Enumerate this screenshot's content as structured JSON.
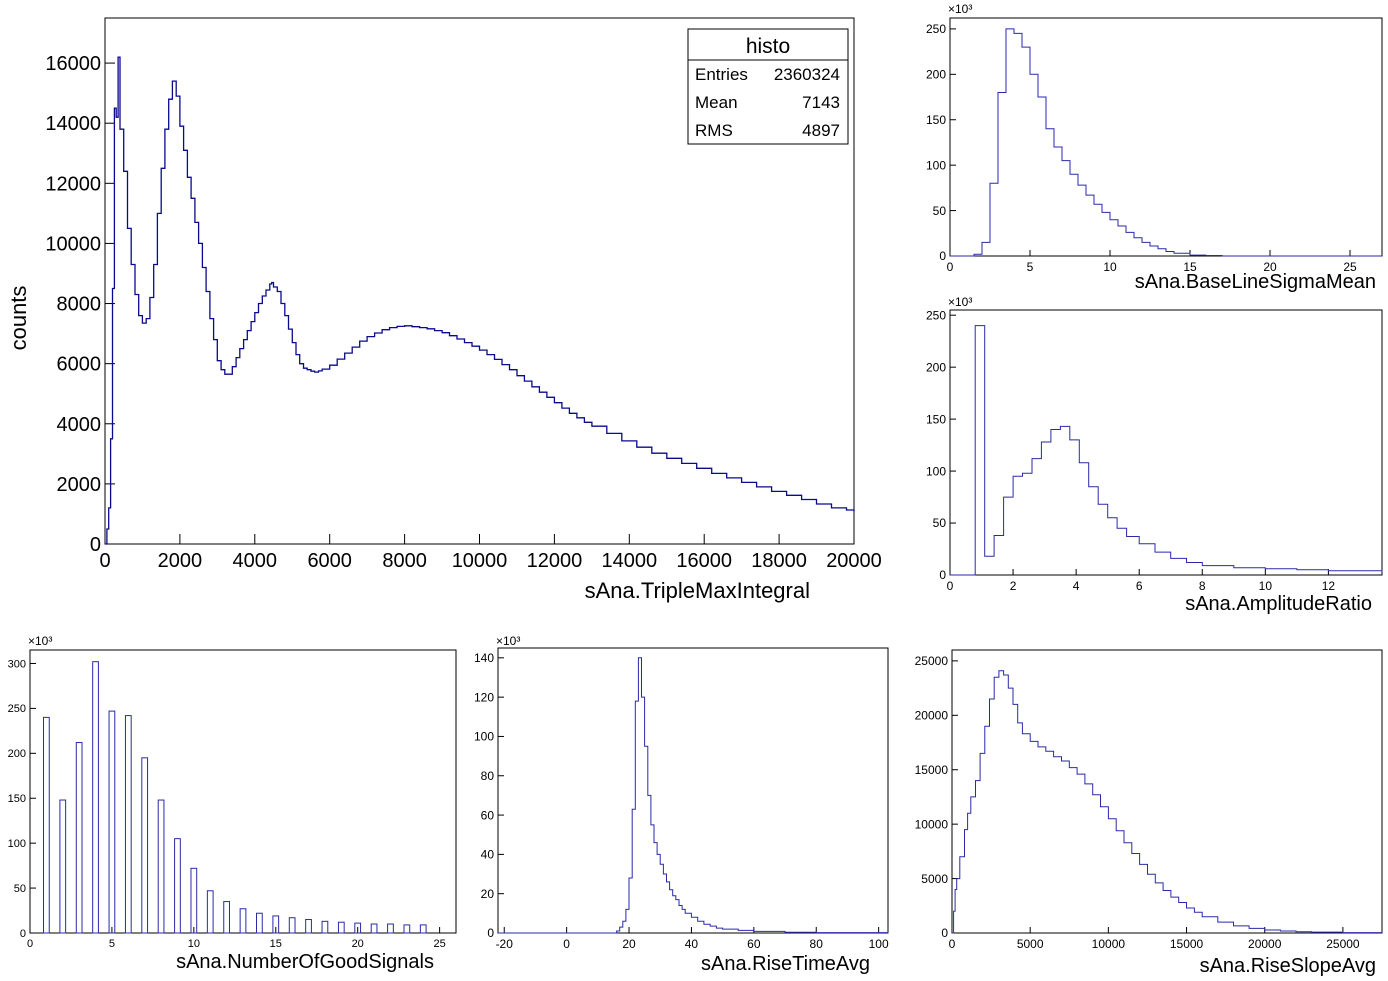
{
  "chart_data": [
    {
      "id": "triple",
      "type": "histogram",
      "title": "",
      "xlabel": "sAna.TripleMaxIntegral",
      "ylabel": "counts",
      "xlim": [
        0,
        20000
      ],
      "ylim": [
        0,
        17500
      ],
      "xticks": [
        0,
        2000,
        4000,
        6000,
        8000,
        10000,
        12000,
        14000,
        16000,
        18000,
        20000
      ],
      "yticks": [
        0,
        2000,
        4000,
        6000,
        8000,
        10000,
        12000,
        14000,
        16000
      ],
      "exponent_label": "",
      "stats": {
        "title": "histo",
        "rows": [
          {
            "label": "Entries",
            "value": "2360324"
          },
          {
            "label": "Mean",
            "value": "7143"
          },
          {
            "label": "RMS",
            "value": "4897"
          }
        ]
      },
      "points": [
        [
          0,
          0
        ],
        [
          50,
          500
        ],
        [
          100,
          1200
        ],
        [
          150,
          3500
        ],
        [
          200,
          8500
        ],
        [
          250,
          14500
        ],
        [
          300,
          14200
        ],
        [
          350,
          16200
        ],
        [
          400,
          13800
        ],
        [
          500,
          12400
        ],
        [
          600,
          10500
        ],
        [
          700,
          9300
        ],
        [
          800,
          8300
        ],
        [
          900,
          7600
        ],
        [
          1000,
          7350
        ],
        [
          1100,
          7500
        ],
        [
          1200,
          8200
        ],
        [
          1300,
          9300
        ],
        [
          1400,
          11000
        ],
        [
          1500,
          12500
        ],
        [
          1600,
          13800
        ],
        [
          1700,
          14800
        ],
        [
          1800,
          15400
        ],
        [
          1900,
          14900
        ],
        [
          2000,
          13900
        ],
        [
          2100,
          13100
        ],
        [
          2200,
          12200
        ],
        [
          2300,
          11500
        ],
        [
          2400,
          10700
        ],
        [
          2500,
          10000
        ],
        [
          2600,
          9200
        ],
        [
          2700,
          8400
        ],
        [
          2800,
          7500
        ],
        [
          2900,
          6800
        ],
        [
          3000,
          6100
        ],
        [
          3100,
          5800
        ],
        [
          3200,
          5650
        ],
        [
          3300,
          5650
        ],
        [
          3400,
          5900
        ],
        [
          3500,
          6200
        ],
        [
          3600,
          6500
        ],
        [
          3700,
          6800
        ],
        [
          3800,
          7100
        ],
        [
          3900,
          7400
        ],
        [
          4000,
          7700
        ],
        [
          4100,
          8000
        ],
        [
          4200,
          8250
        ],
        [
          4300,
          8450
        ],
        [
          4400,
          8650
        ],
        [
          4450,
          8700
        ],
        [
          4500,
          8550
        ],
        [
          4600,
          8400
        ],
        [
          4700,
          8000
        ],
        [
          4800,
          7600
        ],
        [
          4900,
          7150
        ],
        [
          5000,
          6700
        ],
        [
          5100,
          6300
        ],
        [
          5200,
          6000
        ],
        [
          5300,
          5850
        ],
        [
          5400,
          5800
        ],
        [
          5500,
          5750
        ],
        [
          5600,
          5720
        ],
        [
          5700,
          5760
        ],
        [
          5800,
          5820
        ],
        [
          6000,
          5950
        ],
        [
          6200,
          6150
        ],
        [
          6400,
          6350
        ],
        [
          6600,
          6550
        ],
        [
          6800,
          6750
        ],
        [
          7000,
          6900
        ],
        [
          7200,
          7020
        ],
        [
          7400,
          7130
        ],
        [
          7600,
          7200
        ],
        [
          7800,
          7240
        ],
        [
          8000,
          7260
        ],
        [
          8200,
          7230
        ],
        [
          8400,
          7200
        ],
        [
          8600,
          7160
        ],
        [
          8800,
          7100
        ],
        [
          9000,
          7030
        ],
        [
          9200,
          6930
        ],
        [
          9400,
          6820
        ],
        [
          9600,
          6700
        ],
        [
          9800,
          6580
        ],
        [
          10000,
          6450
        ],
        [
          10200,
          6300
        ],
        [
          10400,
          6140
        ],
        [
          10600,
          5970
        ],
        [
          10800,
          5800
        ],
        [
          11000,
          5600
        ],
        [
          11200,
          5420
        ],
        [
          11400,
          5230
        ],
        [
          11600,
          5050
        ],
        [
          11800,
          4880
        ],
        [
          12000,
          4700
        ],
        [
          12200,
          4520
        ],
        [
          12400,
          4350
        ],
        [
          12600,
          4200
        ],
        [
          12800,
          4050
        ],
        [
          13000,
          3920
        ],
        [
          13400,
          3680
        ],
        [
          13800,
          3430
        ],
        [
          14200,
          3220
        ],
        [
          14600,
          3020
        ],
        [
          15000,
          2850
        ],
        [
          15400,
          2680
        ],
        [
          15800,
          2520
        ],
        [
          16200,
          2350
        ],
        [
          16600,
          2200
        ],
        [
          17000,
          2050
        ],
        [
          17400,
          1900
        ],
        [
          17800,
          1750
        ],
        [
          18200,
          1620
        ],
        [
          18600,
          1480
        ],
        [
          19000,
          1330
        ],
        [
          19400,
          1200
        ],
        [
          19800,
          1130
        ],
        [
          20000,
          1080
        ]
      ]
    },
    {
      "id": "baseline",
      "type": "histogram",
      "xlabel": "sAna.BaseLineSigmaMean",
      "ylabel": "",
      "xlim": [
        0,
        27
      ],
      "ylim": [
        0,
        262
      ],
      "xticks": [
        0,
        5,
        10,
        15,
        20,
        25
      ],
      "yticks": [
        0,
        50,
        100,
        150,
        200,
        250
      ],
      "exponent_label": "×10³",
      "points": [
        [
          0,
          0
        ],
        [
          1.0,
          0
        ],
        [
          1.5,
          2
        ],
        [
          2.0,
          15
        ],
        [
          2.5,
          80
        ],
        [
          3.0,
          180
        ],
        [
          3.5,
          250
        ],
        [
          4.0,
          245
        ],
        [
          4.5,
          230
        ],
        [
          5.0,
          200
        ],
        [
          5.5,
          175
        ],
        [
          6.0,
          140
        ],
        [
          6.5,
          120
        ],
        [
          7.0,
          105
        ],
        [
          7.5,
          90
        ],
        [
          8.0,
          78
        ],
        [
          8.5,
          67
        ],
        [
          9.0,
          57
        ],
        [
          9.5,
          48
        ],
        [
          10.0,
          40
        ],
        [
          10.5,
          33
        ],
        [
          11.0,
          26
        ],
        [
          11.5,
          20
        ],
        [
          12.0,
          15
        ],
        [
          12.5,
          11
        ],
        [
          13.0,
          8
        ],
        [
          13.5,
          5
        ],
        [
          14.0,
          3
        ],
        [
          15.0,
          1
        ],
        [
          16.0,
          0.5
        ],
        [
          17.0,
          0
        ],
        [
          27.0,
          0
        ]
      ]
    },
    {
      "id": "amplitude",
      "type": "histogram",
      "xlabel": "sAna.AmplitudeRatio",
      "ylabel": "",
      "xlim": [
        0,
        13.7
      ],
      "ylim": [
        0,
        255
      ],
      "xticks": [
        0,
        2,
        4,
        6,
        8,
        10,
        12
      ],
      "yticks": [
        0,
        50,
        100,
        150,
        200,
        250
      ],
      "exponent_label": "×10³",
      "points": [
        [
          0,
          0
        ],
        [
          0.8,
          0
        ],
        [
          0.8,
          240
        ],
        [
          1.1,
          240
        ],
        [
          1.1,
          18
        ],
        [
          1.4,
          38
        ],
        [
          1.7,
          75
        ],
        [
          2.0,
          95
        ],
        [
          2.3,
          98
        ],
        [
          2.6,
          112
        ],
        [
          2.9,
          128
        ],
        [
          3.2,
          140
        ],
        [
          3.5,
          143
        ],
        [
          3.8,
          130
        ],
        [
          4.1,
          108
        ],
        [
          4.4,
          85
        ],
        [
          4.7,
          68
        ],
        [
          5.0,
          55
        ],
        [
          5.3,
          45
        ],
        [
          5.6,
          37
        ],
        [
          6.0,
          30
        ],
        [
          6.5,
          22
        ],
        [
          7.0,
          16
        ],
        [
          7.5,
          12
        ],
        [
          8.0,
          9
        ],
        [
          9.0,
          7
        ],
        [
          10.0,
          6
        ],
        [
          11.0,
          5
        ],
        [
          12.0,
          4
        ],
        [
          13.7,
          3
        ]
      ]
    },
    {
      "id": "goodsignals",
      "type": "bar",
      "xlabel": "sAna.NumberOfGoodSignals",
      "ylabel": "",
      "xlim": [
        0,
        26
      ],
      "ylim": [
        0,
        315
      ],
      "xticks": [
        0,
        5,
        10,
        15,
        20,
        25
      ],
      "yticks": [
        0,
        50,
        100,
        150,
        200,
        250,
        300
      ],
      "exponent_label": "×10³",
      "categories": [
        1,
        2,
        3,
        4,
        5,
        6,
        7,
        8,
        9,
        10,
        11,
        12,
        13,
        14,
        15,
        16,
        17,
        18,
        19,
        20,
        21,
        22,
        23,
        24
      ],
      "values": [
        240,
        148,
        212,
        302,
        247,
        242,
        195,
        148,
        105,
        72,
        47,
        35,
        27,
        22,
        19,
        17,
        15,
        13,
        12,
        11,
        10,
        10,
        9,
        9
      ]
    },
    {
      "id": "risetime",
      "type": "histogram",
      "xlabel": "sAna.RiseTimeAvg",
      "ylabel": "",
      "xlim": [
        -22,
        103
      ],
      "ylim": [
        0,
        145
      ],
      "xticks": [
        -20,
        0,
        20,
        40,
        60,
        80,
        100
      ],
      "yticks": [
        0,
        20,
        40,
        60,
        80,
        100,
        120,
        140
      ],
      "exponent_label": "×10³",
      "points": [
        [
          -22,
          0
        ],
        [
          14,
          0
        ],
        [
          16,
          1
        ],
        [
          17,
          3
        ],
        [
          18,
          6
        ],
        [
          19,
          12
        ],
        [
          20,
          28
        ],
        [
          21,
          63
        ],
        [
          22,
          118
        ],
        [
          23,
          140
        ],
        [
          24,
          120
        ],
        [
          25,
          95
        ],
        [
          26,
          70
        ],
        [
          27,
          55
        ],
        [
          28,
          46
        ],
        [
          29,
          40
        ],
        [
          30,
          35
        ],
        [
          31,
          30
        ],
        [
          32,
          26
        ],
        [
          33,
          22
        ],
        [
          34,
          19
        ],
        [
          35,
          17
        ],
        [
          36,
          14
        ],
        [
          37,
          12
        ],
        [
          38,
          10
        ],
        [
          40,
          8
        ],
        [
          42,
          6
        ],
        [
          44,
          4.5
        ],
        [
          46,
          3.5
        ],
        [
          48,
          2.5
        ],
        [
          50,
          2
        ],
        [
          55,
          1.3
        ],
        [
          60,
          0.8
        ],
        [
          70,
          0.4
        ],
        [
          80,
          0.2
        ],
        [
          103,
          0
        ]
      ]
    },
    {
      "id": "riseslope",
      "type": "histogram",
      "xlabel": "sAna.RiseSlopeAvg",
      "ylabel": "",
      "xlim": [
        0,
        27500
      ],
      "ylim": [
        0,
        26000
      ],
      "xticks": [
        0,
        5000,
        10000,
        15000,
        20000,
        25000
      ],
      "yticks": [
        0,
        5000,
        10000,
        15000,
        20000,
        25000
      ],
      "exponent_label": "",
      "points": [
        [
          0,
          0
        ],
        [
          100,
          2000
        ],
        [
          200,
          4000
        ],
        [
          300,
          5000
        ],
        [
          500,
          7000
        ],
        [
          800,
          9500
        ],
        [
          1000,
          11000
        ],
        [
          1200,
          12500
        ],
        [
          1500,
          14000
        ],
        [
          1800,
          16500
        ],
        [
          2100,
          19000
        ],
        [
          2400,
          21500
        ],
        [
          2700,
          23500
        ],
        [
          3000,
          24100
        ],
        [
          3300,
          23700
        ],
        [
          3600,
          22500
        ],
        [
          3900,
          21000
        ],
        [
          4200,
          19300
        ],
        [
          4500,
          18300
        ],
        [
          5000,
          17600
        ],
        [
          5500,
          17100
        ],
        [
          6000,
          16700
        ],
        [
          6500,
          16200
        ],
        [
          7000,
          15800
        ],
        [
          7500,
          15200
        ],
        [
          8000,
          14600
        ],
        [
          8500,
          13700
        ],
        [
          9000,
          12700
        ],
        [
          9500,
          11600
        ],
        [
          10000,
          10500
        ],
        [
          10500,
          9400
        ],
        [
          11000,
          8300
        ],
        [
          11500,
          7300
        ],
        [
          12000,
          6300
        ],
        [
          12500,
          5400
        ],
        [
          13000,
          4600
        ],
        [
          13500,
          3900
        ],
        [
          14000,
          3300
        ],
        [
          14500,
          2800
        ],
        [
          15000,
          2300
        ],
        [
          15500,
          1900
        ],
        [
          16000,
          1500
        ],
        [
          17000,
          1000
        ],
        [
          18000,
          650
        ],
        [
          19000,
          420
        ],
        [
          20000,
          280
        ],
        [
          21000,
          180
        ],
        [
          22000,
          120
        ],
        [
          23000,
          80
        ],
        [
          25000,
          40
        ],
        [
          27500,
          20
        ]
      ]
    }
  ]
}
